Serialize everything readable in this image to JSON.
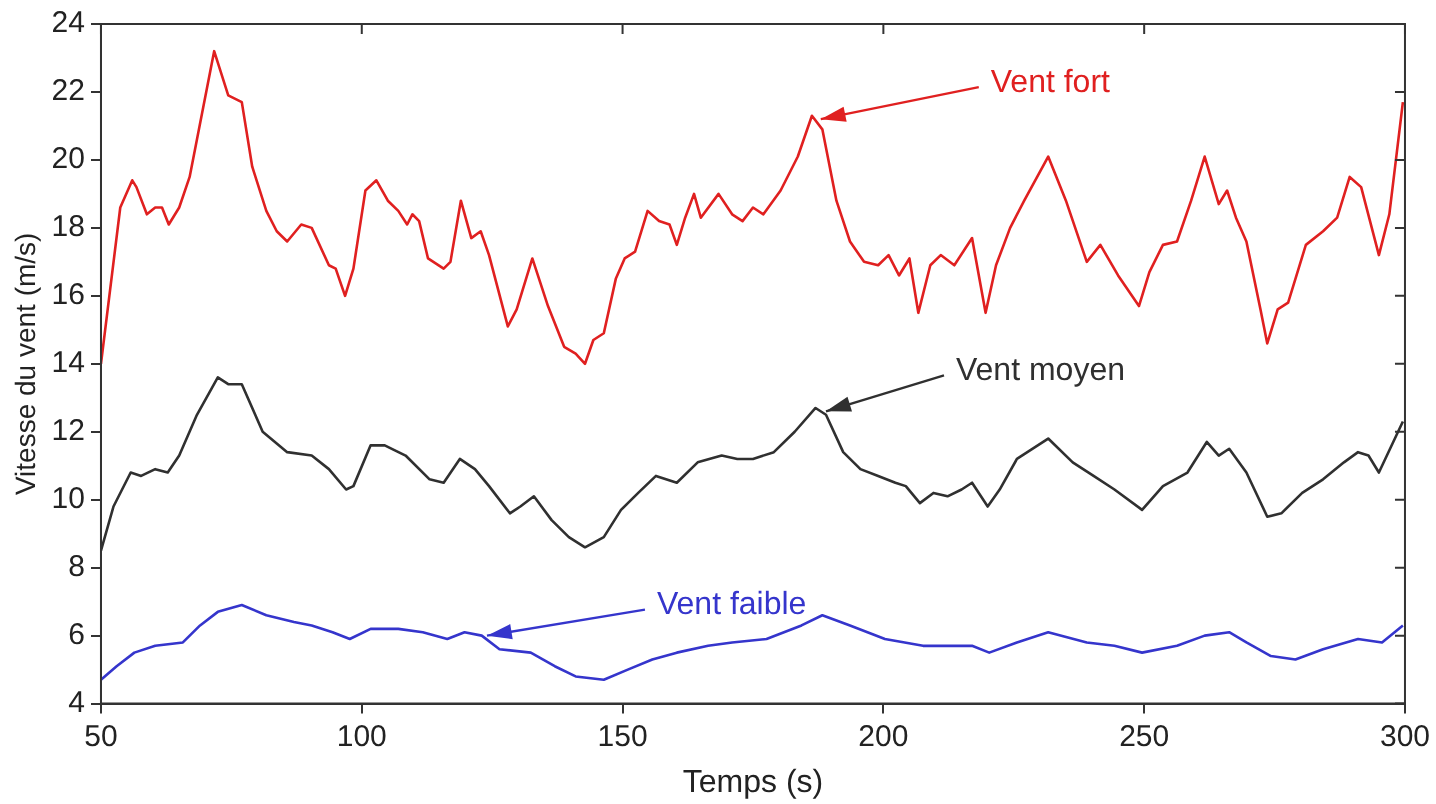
{
  "chart_data": {
    "type": "line",
    "xlabel": "Temps (s)",
    "ylabel": "Vitesse du vent (m/s)",
    "xlim": [
      50,
      300
    ],
    "xticks": [
      50,
      100,
      150,
      200,
      250,
      300
    ],
    "ylim": [
      4,
      24
    ],
    "yticks": [
      4,
      6,
      8,
      10,
      12,
      14,
      16,
      18,
      20,
      22,
      24
    ],
    "grid": false,
    "legend": false,
    "marker": "none",
    "line_style": "solid",
    "series": [
      {
        "color": "#e02020",
        "x": [
          50,
          53.7,
          56,
          56.8,
          58.8,
          60.4,
          61.7,
          63,
          65,
          67,
          68.4,
          71.7,
          74.4,
          77,
          79,
          81.7,
          83.7,
          85.7,
          88.4,
          90.4,
          93.7,
          95,
          96.8,
          98.4,
          100.7,
          102.8,
          105,
          107,
          108.7,
          109.7,
          111,
          112.7,
          115.7,
          117,
          119,
          121,
          122.8,
          124.4,
          128,
          129.7,
          132.7,
          135.7,
          138.8,
          141,
          142.8,
          144.4,
          146.4,
          148.7,
          150.4,
          152.4,
          154.8,
          157,
          159,
          160.4,
          162,
          163.7,
          165,
          168.4,
          171,
          173,
          175,
          177,
          180.3,
          183.6,
          186.3,
          188.3,
          191,
          193.6,
          196.3,
          199,
          201,
          203,
          205,
          206.7,
          209,
          211,
          213.6,
          217,
          219.6,
          221.6,
          224.3,
          227,
          231.6,
          235,
          239,
          241.6,
          245,
          249,
          251,
          253.6,
          256.3,
          259,
          261.6,
          264.3,
          265.9,
          267.6,
          269.6,
          272.3,
          273.6,
          275.6,
          277.6,
          281,
          284.3,
          287,
          289.4,
          291.6,
          295,
          297,
          299.6
        ],
        "values": [
          14.0,
          18.6,
          19.4,
          19.2,
          18.4,
          18.6,
          18.6,
          18.1,
          18.6,
          19.5,
          20.6,
          23.2,
          21.9,
          21.7,
          19.8,
          18.5,
          17.9,
          17.6,
          18.1,
          18.0,
          16.9,
          16.8,
          16.0,
          16.8,
          19.1,
          19.4,
          18.8,
          18.5,
          18.1,
          18.4,
          18.2,
          17.1,
          16.8,
          17.0,
          18.8,
          17.7,
          17.9,
          17.2,
          15.1,
          15.6,
          17.1,
          15.7,
          14.5,
          14.3,
          14.0,
          14.7,
          14.9,
          16.5,
          17.1,
          17.3,
          18.5,
          18.2,
          18.1,
          17.5,
          18.3,
          19.0,
          18.3,
          19.0,
          18.4,
          18.2,
          18.6,
          18.4,
          19.1,
          20.1,
          21.3,
          20.9,
          18.8,
          17.6,
          17.0,
          16.9,
          17.2,
          16.6,
          17.1,
          15.5,
          16.9,
          17.2,
          16.9,
          17.7,
          15.5,
          16.9,
          18.0,
          18.8,
          20.1,
          18.8,
          17.0,
          17.5,
          16.6,
          15.7,
          16.7,
          17.5,
          17.6,
          18.8,
          20.1,
          18.7,
          19.1,
          18.3,
          17.6,
          15.6,
          14.6,
          15.6,
          15.8,
          17.5,
          17.9,
          18.3,
          19.5,
          19.2,
          17.2,
          18.4,
          21.7
        ]
      },
      {
        "color": "#303030",
        "x": [
          50,
          52.4,
          55.7,
          57.7,
          60.4,
          62.8,
          65,
          68.4,
          72.4,
          74.4,
          77,
          81,
          85.7,
          90.4,
          93.7,
          97,
          98.4,
          101.7,
          104.4,
          108.4,
          113,
          115.7,
          118.8,
          121.7,
          124.4,
          128.4,
          130.4,
          133,
          136.4,
          139.7,
          142.8,
          146.4,
          149.7,
          153,
          156.4,
          160.4,
          164.4,
          169,
          172,
          175,
          179,
          183,
          187,
          189,
          192.3,
          195.6,
          199,
          202.3,
          204.3,
          207,
          209.6,
          212.3,
          215,
          217,
          220,
          222.3,
          225.6,
          231.6,
          236.3,
          240.3,
          244.3,
          249.6,
          253.6,
          258.3,
          262,
          264.3,
          266.3,
          269.6,
          273.6,
          276.3,
          280.3,
          284.3,
          288.3,
          291,
          293,
          295,
          299.6
        ],
        "values": [
          8.5,
          9.8,
          10.8,
          10.7,
          10.9,
          10.8,
          11.3,
          12.5,
          13.6,
          13.4,
          13.4,
          12.0,
          11.4,
          11.3,
          10.9,
          10.3,
          10.4,
          11.6,
          11.6,
          11.3,
          10.6,
          10.5,
          11.2,
          10.9,
          10.4,
          9.6,
          9.8,
          10.1,
          9.4,
          8.9,
          8.6,
          8.9,
          9.7,
          10.2,
          10.7,
          10.5,
          11.1,
          11.3,
          11.2,
          11.2,
          11.4,
          12.0,
          12.7,
          12.5,
          11.4,
          10.9,
          10.7,
          10.5,
          10.4,
          9.9,
          10.2,
          10.1,
          10.3,
          10.5,
          9.8,
          10.3,
          11.2,
          11.8,
          11.1,
          10.7,
          10.3,
          9.7,
          10.4,
          10.8,
          11.7,
          11.3,
          11.5,
          10.8,
          9.5,
          9.6,
          10.2,
          10.6,
          11.1,
          11.4,
          11.3,
          10.8,
          12.3
        ]
      },
      {
        "color": "#3535cc",
        "x": [
          50,
          53,
          56.4,
          60.4,
          65.7,
          69,
          72.4,
          77,
          81.7,
          87,
          90.4,
          94.4,
          97.7,
          101.7,
          107,
          111.7,
          116.4,
          119.7,
          123,
          126.4,
          132.4,
          137,
          141,
          146.4,
          151,
          155.7,
          160.4,
          166.4,
          171,
          177.6,
          184.3,
          188.3,
          193.6,
          200.3,
          207.6,
          217,
          220.3,
          225.6,
          231.6,
          239,
          244.3,
          249.6,
          256.3,
          261.6,
          266.3,
          269.6,
          274.3,
          279,
          284.3,
          291,
          295.6,
          299.6
        ],
        "values": [
          4.7,
          5.1,
          5.5,
          5.7,
          5.8,
          6.3,
          6.7,
          6.9,
          6.6,
          6.4,
          6.3,
          6.1,
          5.9,
          6.2,
          6.2,
          6.1,
          5.9,
          6.1,
          6.0,
          5.6,
          5.5,
          5.1,
          4.8,
          4.7,
          5.0,
          5.3,
          5.5,
          5.7,
          5.8,
          5.9,
          6.3,
          6.6,
          6.3,
          5.9,
          5.7,
          5.7,
          5.5,
          5.8,
          6.1,
          5.8,
          5.7,
          5.5,
          5.7,
          6.0,
          6.1,
          5.8,
          5.4,
          5.3,
          5.6,
          5.9,
          5.8,
          6.3
        ]
      }
    ],
    "annotations": [
      {
        "text": "Vent fort",
        "x": 188,
        "y": 21.2
      },
      {
        "text": "Vent moyen",
        "x": 189,
        "y": 12.6
      },
      {
        "text": "Vent faible",
        "x": 124,
        "y": 6.0
      }
    ]
  }
}
